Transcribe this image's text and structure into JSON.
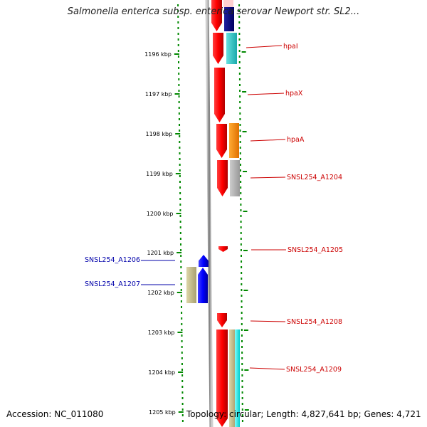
{
  "title": "Salmonella enterica subsp. enterica serovar Newport str. SL2...",
  "ticks": [
    "1196 kbp",
    "1197 kbp",
    "1198 kbp",
    "1199 kbp",
    "1200 kbp",
    "1201 kbp",
    "1202 kbp",
    "1203 kbp",
    "1204 kbp",
    "1205 kbp"
  ],
  "genes_right": [
    {
      "name": "hpaI"
    },
    {
      "name": "hpaX"
    },
    {
      "name": "hpaA"
    },
    {
      "name": "SNSL254_A1204"
    },
    {
      "name": "SNSL254_A1205"
    },
    {
      "name": "SNSL254_A1208"
    },
    {
      "name": "SNSL254_A1209"
    }
  ],
  "genes_left": [
    {
      "name": "SNSL254_A1206"
    },
    {
      "name": "SNSL254_A1207"
    }
  ],
  "colors": {
    "forward_gene": "#ff0000",
    "reverse_gene": "#0000ff",
    "backbone": "#888888",
    "ruler": "#008800",
    "cog_cyan": "#33cccc",
    "cog_orange": "#ff8800",
    "cog_gray": "#aaaaaa",
    "cog_khaki": "#c8c08a",
    "cog_navy": "#000080",
    "cog_aqua": "#00ffff"
  },
  "footer": {
    "accession": "Accession: NC_011080",
    "summary": "Topology: circular; Length: 4,827,641 bp; Genes: 4,721"
  }
}
